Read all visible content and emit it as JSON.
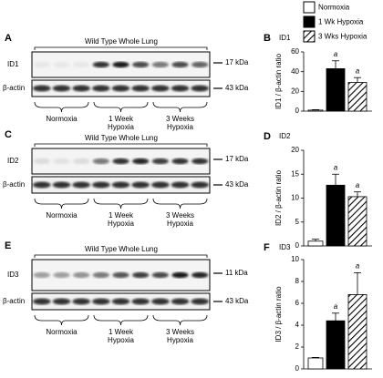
{
  "legend": {
    "entries": [
      "Normoxia",
      "1 Wk Hypoxia",
      "3 Wks Hypoxia"
    ]
  },
  "blots": [
    {
      "panel": "A",
      "title": "Wild Type Whole Lung",
      "protein": "ID1",
      "protein_kda": "17 kDa",
      "control": "β-actin",
      "control_kda": "43 kDa",
      "groups": [
        [
          "Normoxia"
        ],
        [
          "1 Week",
          "Hypoxia"
        ],
        [
          "3 Weeks",
          "Hypoxia"
        ]
      ]
    },
    {
      "panel": "C",
      "title": "Wild Type Whole Lung",
      "protein": "ID2",
      "protein_kda": "17 kDa",
      "control": "β-actin",
      "control_kda": "43 kDa",
      "groups": [
        [
          "Normoxia"
        ],
        [
          "1 Week",
          "Hypoxia"
        ],
        [
          "3 Weeks",
          "Hypoxia"
        ]
      ]
    },
    {
      "panel": "E",
      "title": "Wild Type Whole Lung",
      "protein": "ID3",
      "protein_kda": "11 kDa",
      "control": "β-actin",
      "control_kda": "43 kDa",
      "groups": [
        [
          "Normoxia"
        ],
        [
          "1 Week",
          "Hypoxia"
        ],
        [
          "3 Weeks",
          "Hypoxia"
        ]
      ]
    }
  ],
  "chart_data": [
    {
      "type": "bar",
      "panel": "B",
      "title": "ID1",
      "y_label": "ID1 / β-actin ratio",
      "values": [
        1,
        43,
        29
      ],
      "errors": [
        0.5,
        8,
        5
      ],
      "colors": [
        "#ffffff",
        "#000000",
        "hatch"
      ],
      "annotations": [
        "a",
        "a"
      ],
      "ylim": [
        0,
        60
      ],
      "yticks": [
        0,
        20,
        40,
        60
      ]
    },
    {
      "type": "bar",
      "panel": "D",
      "title": "ID2",
      "y_label": "ID2 / β-actin ratio",
      "values": [
        1,
        12.7,
        10.3
      ],
      "errors": [
        0.4,
        2.3,
        1
      ],
      "colors": [
        "#ffffff",
        "#000000",
        "hatch"
      ],
      "annotations": [
        "a",
        "a"
      ],
      "ylim": [
        0,
        20
      ],
      "yticks": [
        0,
        5,
        10,
        15,
        20
      ]
    },
    {
      "type": "bar",
      "panel": "F",
      "title": "ID3",
      "y_label": "ID3 / β-actin ratio",
      "values": [
        1,
        4.4,
        6.8
      ],
      "errors": [
        0.05,
        0.7,
        2
      ],
      "colors": [
        "#ffffff",
        "#000000",
        "hatch"
      ],
      "annotations": [
        "a",
        "a"
      ],
      "ylim": [
        0,
        10
      ],
      "yticks": [
        0,
        2,
        4,
        6,
        8,
        10
      ]
    }
  ]
}
